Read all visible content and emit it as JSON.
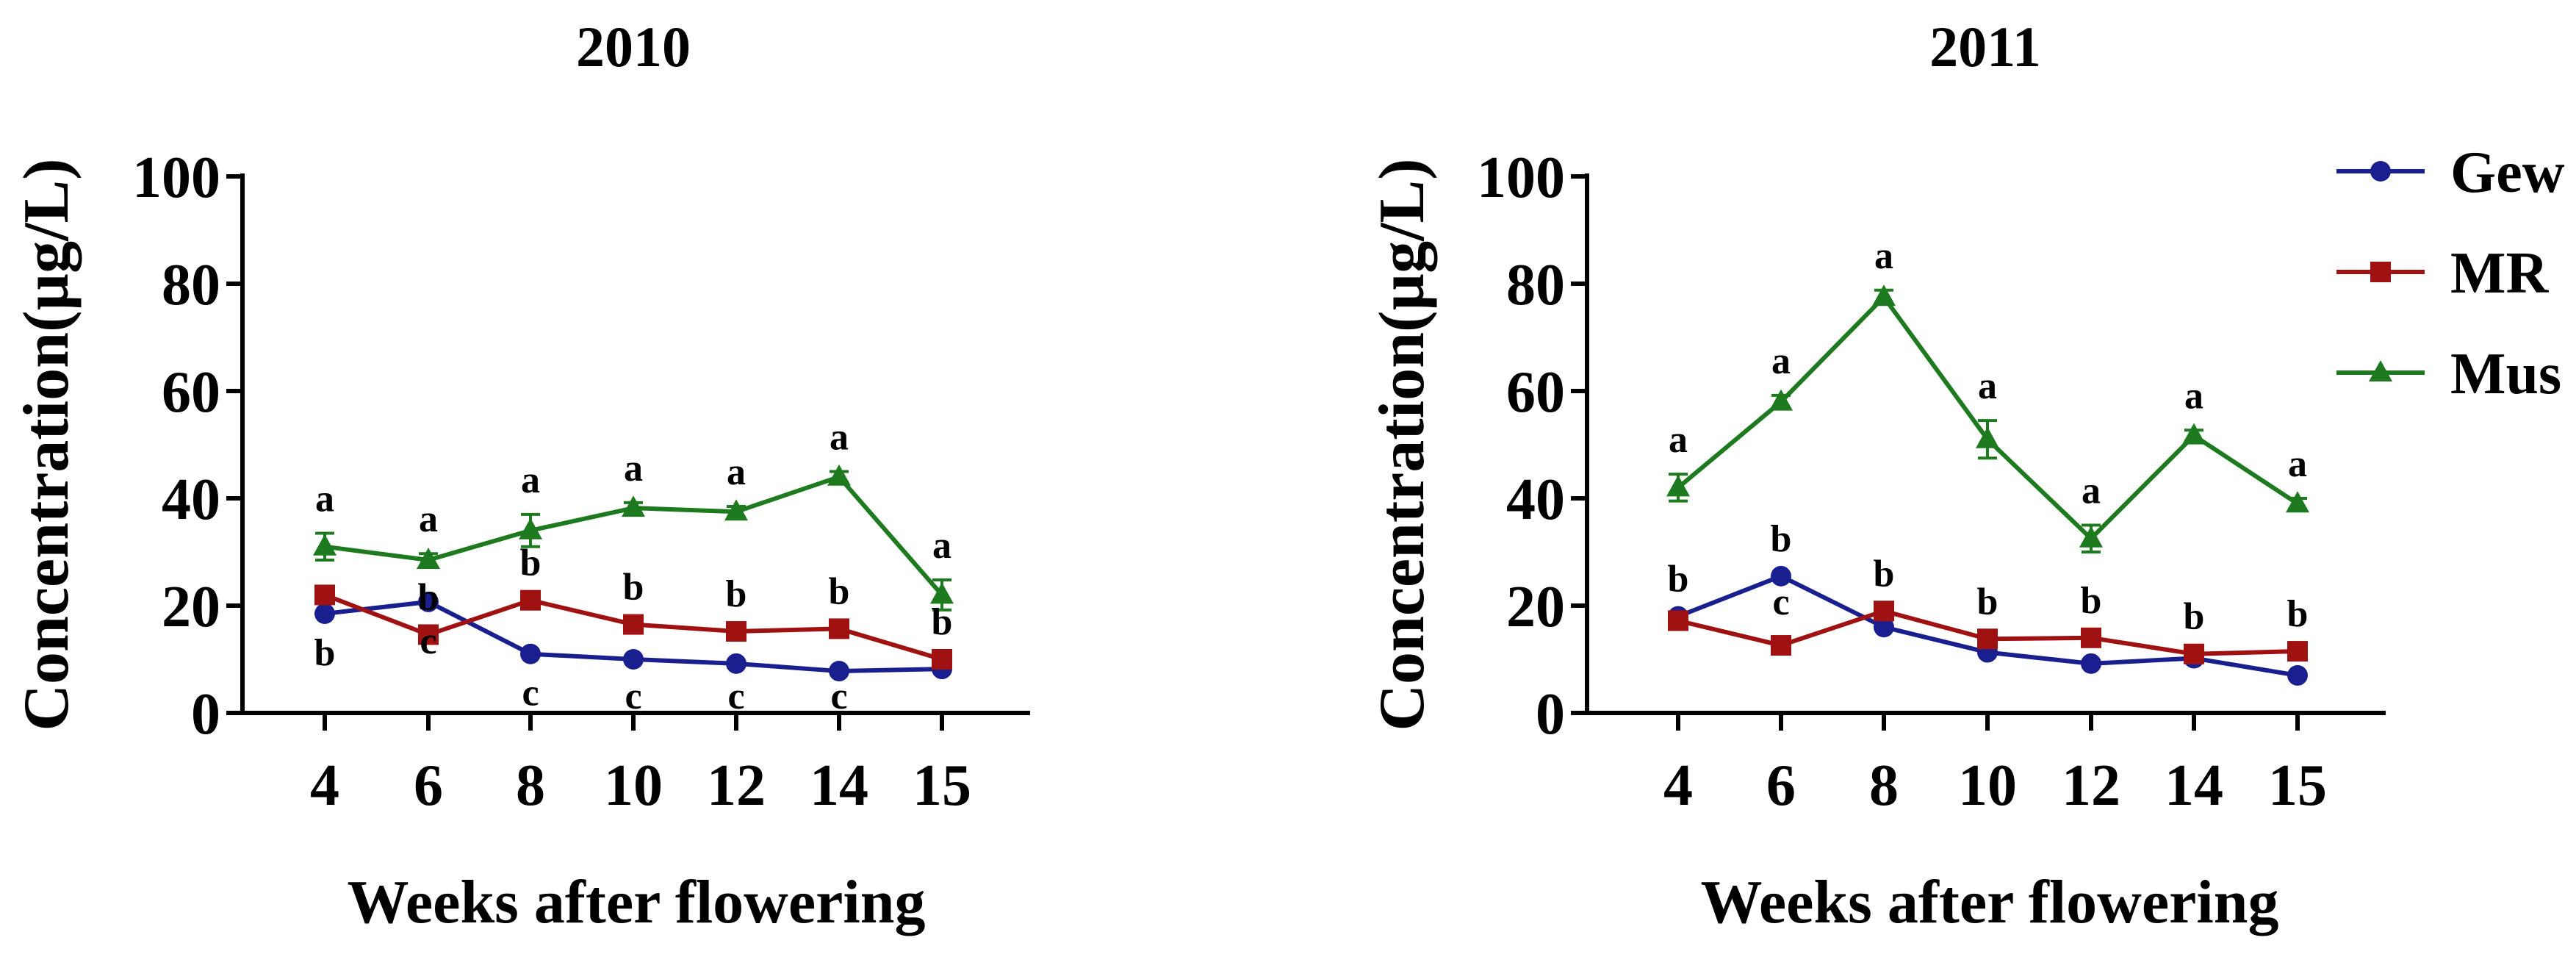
{
  "chart_data": [
    {
      "type": "line",
      "title": "2010",
      "xlabel": "Weeks after flowering",
      "ylabel": "Concentration(µg/L)",
      "categories": [
        "4",
        "6",
        "8",
        "10",
        "12",
        "14",
        "15"
      ],
      "ylim": [
        0,
        100
      ],
      "yticks": [
        "0",
        "20",
        "40",
        "60",
        "80",
        "100"
      ],
      "series": [
        {
          "name": "Gew",
          "color": "#1a1f8f",
          "marker": "circle",
          "values": [
            18.5,
            20.7,
            11,
            10,
            9.2,
            7.8,
            8.2
          ],
          "errors": [
            0,
            0,
            0,
            0,
            0,
            0,
            0
          ],
          "letters": [
            "b",
            "c",
            "c",
            "c",
            "c",
            "c",
            ""
          ]
        },
        {
          "name": "MR",
          "color": "#a01212",
          "marker": "square",
          "values": [
            22,
            14.6,
            21,
            16.5,
            15.2,
            15.7,
            10
          ],
          "errors": [
            0,
            0,
            0,
            0,
            0,
            0,
            0
          ],
          "letters": [
            "",
            "b",
            "b",
            "b",
            "b",
            "b",
            "b"
          ]
        },
        {
          "name": "Mus",
          "color": "#1e7a1e",
          "marker": "triangle",
          "values": [
            31,
            28.5,
            34,
            38.2,
            37.5,
            44,
            22
          ],
          "errors": [
            2.5,
            1.2,
            3.0,
            1.0,
            1.0,
            1.0,
            2.8
          ],
          "letters": [
            "a",
            "a",
            "a",
            "a",
            "a",
            "a",
            "a"
          ]
        }
      ]
    },
    {
      "type": "line",
      "title": "2011",
      "xlabel": "Weeks after flowering",
      "ylabel": "Concentration(µg/L)",
      "categories": [
        "4",
        "6",
        "8",
        "10",
        "12",
        "14",
        "15"
      ],
      "ylim": [
        0,
        100
      ],
      "yticks": [
        "0",
        "20",
        "40",
        "60",
        "80",
        "100"
      ],
      "series": [
        {
          "name": "Gew",
          "color": "#1a1f8f",
          "marker": "circle",
          "values": [
            18,
            25.5,
            16,
            11.3,
            9.2,
            10.2,
            7
          ],
          "errors": [
            0,
            0,
            0,
            0,
            0,
            0,
            0
          ],
          "letters": [
            "b",
            "b",
            "",
            "",
            "",
            "",
            ""
          ]
        },
        {
          "name": "MR",
          "color": "#a01212",
          "marker": "square",
          "values": [
            17.2,
            12.6,
            19,
            13.8,
            14,
            11,
            11.5
          ],
          "errors": [
            0,
            0,
            0,
            0,
            0,
            0,
            0
          ],
          "letters": [
            "",
            "c",
            "b",
            "b",
            "b",
            "b",
            "b"
          ]
        },
        {
          "name": "Mus",
          "color": "#1e7a1e",
          "marker": "triangle",
          "values": [
            42,
            58,
            77.5,
            51,
            32.5,
            51.7,
            39
          ],
          "errors": [
            2.5,
            1.2,
            1.3,
            3.5,
            2.5,
            1.0,
            1.0
          ],
          "letters": [
            "a",
            "a",
            "a",
            "a",
            "a",
            "a",
            "a"
          ]
        }
      ]
    }
  ],
  "legend": {
    "position": "top-right",
    "items": [
      {
        "label": "Gew",
        "color": "#1a1f8f",
        "marker": "circle"
      },
      {
        "label": "MR",
        "color": "#a01212",
        "marker": "square"
      },
      {
        "label": "Mus",
        "color": "#1e7a1e",
        "marker": "triangle"
      }
    ]
  }
}
